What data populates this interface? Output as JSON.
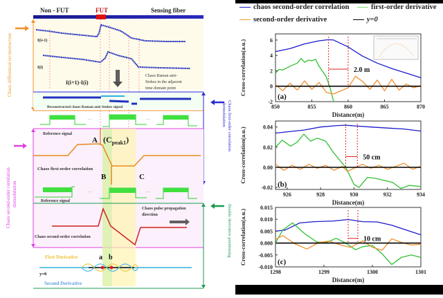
{
  "figure": {
    "left_diagram": {
      "fiber_labels": {
        "non_fut": "Non - FUT",
        "fut": "FUT",
        "sensing": "Sensing fiber"
      },
      "traces": {
        "i_plus": "I(i+1)",
        "i": "I(i)",
        "diff": "I(i+1)-I(i)"
      },
      "note_raman": [
        "Chaos Raman anti-",
        "Stokes in the adjacent",
        "time domain point"
      ],
      "reconstructed_label": "Reconstructed chaos Raman anti Stokes signal",
      "reference_label": "Reference signal",
      "ellipsis": "···",
      "point_a": "A",
      "point_b": "B",
      "point_c": "C",
      "peak_label": "(C",
      "peak_sub": "peak1",
      "peak_close": ")",
      "first_order_label": "Chaos first-order correlation",
      "second_order_label": "Chaos second-order correlation",
      "propagation_label": [
        "Chaos pulse propagation",
        "direction"
      ],
      "first_derivative": "First Derivative",
      "second_derivative": "Second Derivative",
      "y0": "y=0",
      "point_a_small": "a",
      "point_b_small": "b",
      "side_labels": {
        "differential": "Chaos differential reconstruction",
        "second_order": [
          "Chaos second-order correlation",
          "demodulation"
        ],
        "first_order": [
          "Chaos first-order correlation",
          "demodulation"
        ],
        "double_derivative": "Double derivative positioning"
      },
      "colors": {
        "navy": "#1a1a8c",
        "fut_red": "#e01010",
        "orange": "#f0902a",
        "magenta": "#e040e0",
        "green": "#1a9a50",
        "trace_blue": "#2030c0",
        "ref_green": "#30d030",
        "corr_orange": "#e88a1a",
        "corr_red": "#d02020",
        "cyan": "#30b0e0",
        "yellow": "#f0c030"
      }
    },
    "legend": {
      "items": [
        {
          "label": "chaos second-order correlation",
          "color": "#1a1acc"
        },
        {
          "label": "first-order derivative",
          "color": "#7ae07a"
        },
        {
          "label": "second-order derivative",
          "color": "#f0a020"
        },
        {
          "label": "y=0",
          "color": "#000000"
        }
      ]
    }
  },
  "chart_data": [
    {
      "type": "line",
      "panel": "(a)",
      "xlabel": "Distance(m)",
      "ylabel": "Cross-correlation(a.u.)",
      "xlim": [
        850,
        870
      ],
      "ylim": [
        -2,
        6.8
      ],
      "xticks": [
        "850",
        "855",
        "860",
        "865",
        "870"
      ],
      "yticks": [
        "-2",
        "0",
        "2",
        "4",
        "6"
      ],
      "annotation": "2.0  m",
      "markers_x": [
        857.3,
        860
      ],
      "series": [
        {
          "name": "chaos second-order correlation",
          "color": "#1a1acc",
          "x": [
            850,
            852,
            854,
            856,
            857.3,
            858,
            860,
            862,
            864,
            866,
            868,
            870
          ],
          "y": [
            4.5,
            4.9,
            5.5,
            5.9,
            6.05,
            6.0,
            5.1,
            3.9,
            3.0,
            2.3,
            1.7,
            1.1
          ]
        },
        {
          "name": "first-order derivative",
          "color": "#30c030",
          "x": [
            850,
            850.5,
            851,
            852,
            853,
            853.5,
            854,
            854.5,
            855,
            855.5,
            856,
            857,
            857.5,
            858
          ],
          "y": [
            1.7,
            2.2,
            2.1,
            2.6,
            3.0,
            3.6,
            3.1,
            3.4,
            3.3,
            3.5,
            2.6,
            1.2,
            -0.2,
            -2.0
          ]
        },
        {
          "name": "second-order derivative",
          "color": "#f09030",
          "x": [
            850,
            851,
            852,
            853,
            854,
            855,
            856,
            857,
            858,
            859,
            860,
            861,
            862,
            863,
            864,
            865,
            866,
            867,
            868,
            869,
            870
          ],
          "y": [
            0.2,
            -0.6,
            0.4,
            -0.5,
            0.7,
            -0.4,
            0.5,
            -0.8,
            -1.0,
            -0.6,
            -0.2,
            1.3,
            0.6,
            -0.4,
            0.8,
            -0.6,
            0.9,
            -0.5,
            0.3,
            -0.2,
            0.1
          ]
        },
        {
          "name": "y=0",
          "color": "#000000",
          "x": [
            850,
            870
          ],
          "y": [
            0,
            0
          ]
        }
      ]
    },
    {
      "type": "line",
      "panel": "(b)",
      "xlabel": "Distance(m)",
      "ylabel": "Cross-correlation(a.u.)",
      "xlim": [
        925.3,
        934
      ],
      "ylim": [
        -0.022,
        0.046
      ],
      "xticks": [
        "926",
        "928",
        "930",
        "932",
        "934"
      ],
      "yticks": [
        "-0.02",
        "0.00",
        "0.02",
        "0.04"
      ],
      "annotation": "50 cm",
      "markers_x": [
        929.5,
        930.2
      ],
      "series": [
        {
          "name": "chaos second-order correlation",
          "color": "#1a1acc",
          "x": [
            925.3,
            927,
            928,
            929,
            929.5,
            930,
            931,
            932,
            933,
            934
          ],
          "y": [
            0.034,
            0.037,
            0.04,
            0.0415,
            0.0418,
            0.0412,
            0.04,
            0.039,
            0.038,
            0.036
          ]
        },
        {
          "name": "first-order derivative",
          "color": "#30c030",
          "x": [
            925.3,
            925.7,
            926.2,
            926.6,
            927,
            927.4,
            927.8,
            928.3,
            928.8,
            929.5,
            930,
            930.3,
            930.8,
            931.3,
            931.8,
            932.3,
            932.8,
            933.3,
            934
          ],
          "y": [
            0.02,
            0.027,
            0.021,
            0.025,
            0.033,
            0.026,
            0.029,
            0.026,
            0.014,
            0.0,
            -0.017,
            -0.02,
            -0.01,
            -0.011,
            -0.013,
            -0.015,
            -0.021,
            -0.018,
            -0.019
          ]
        },
        {
          "name": "second-order derivative",
          "color": "#f09030",
          "x": [
            925.3,
            925.8,
            926.3,
            926.8,
            927.3,
            927.8,
            928.3,
            928.8,
            929.3,
            929.6,
            930,
            930.5,
            931,
            931.5,
            932,
            932.5,
            933,
            933.5,
            934
          ],
          "y": [
            0.003,
            -0.003,
            0.002,
            -0.002,
            0.003,
            -0.001,
            0.002,
            -0.003,
            0.001,
            -0.004,
            -0.001,
            0.003,
            -0.001,
            0.002,
            -0.002,
            0.001,
            0.004,
            -0.002,
            0.001
          ]
        },
        {
          "name": "y=0",
          "color": "#000000",
          "x": [
            925.3,
            934
          ],
          "y": [
            0,
            0
          ]
        }
      ]
    },
    {
      "type": "line",
      "panel": "(c)",
      "xlabel": "Distance(m)",
      "ylabel": "Cross-correlation(a.u.)",
      "xlim": [
        1298,
        1301
      ],
      "ylim": [
        -0.01,
        0.015
      ],
      "xticks": [
        "1298",
        "1299",
        "1300",
        "1301"
      ],
      "yticks": [
        "-0.010",
        "-0.005",
        "0.000",
        "0.005",
        "0.010",
        "0.015"
      ],
      "annotation": "10 cm",
      "markers_x": [
        1299.5,
        1299.7
      ],
      "series": [
        {
          "name": "chaos second-order correlation",
          "color": "#1a1acc",
          "x": [
            1298,
            1298.2,
            1298.5,
            1298.8,
            1299.2,
            1299.5,
            1299.8,
            1300.1,
            1300.4,
            1300.7,
            1301
          ],
          "y": [
            0.005,
            0.0055,
            0.0085,
            0.009,
            0.0093,
            0.0099,
            0.009,
            0.0089,
            0.0075,
            0.0055,
            0.0035
          ]
        },
        {
          "name": "first-order derivative",
          "color": "#30c030",
          "x": [
            1298,
            1298.15,
            1298.35,
            1298.6,
            1298.85,
            1299.05,
            1299.25,
            1299.45,
            1299.65,
            1299.8,
            1300,
            1300.2,
            1300.4,
            1300.6,
            1300.8,
            1301
          ],
          "y": [
            0.0,
            0.0055,
            0.0085,
            0.004,
            0.0005,
            0.0002,
            0.002,
            0.0,
            -0.0028,
            -0.0015,
            -0.001,
            -0.0045,
            -0.009,
            -0.006,
            -0.005,
            -0.006
          ]
        },
        {
          "name": "second-order derivative",
          "color": "#f09030",
          "x": [
            1298,
            1298.15,
            1298.4,
            1298.65,
            1298.9,
            1299.1,
            1299.35,
            1299.55,
            1299.8,
            1300,
            1300.2,
            1300.4,
            1300.6,
            1300.8,
            1301
          ],
          "y": [
            0.0015,
            0.0032,
            -0.0003,
            -0.0025,
            0.0003,
            0.0008,
            -0.0008,
            -0.0018,
            0.001,
            -0.0018,
            -0.003,
            0.0018,
            0.0003,
            -0.0008,
            -0.0005
          ]
        },
        {
          "name": "y=0",
          "color": "#000000",
          "x": [
            1298,
            1301
          ],
          "y": [
            0,
            0
          ]
        }
      ]
    }
  ]
}
